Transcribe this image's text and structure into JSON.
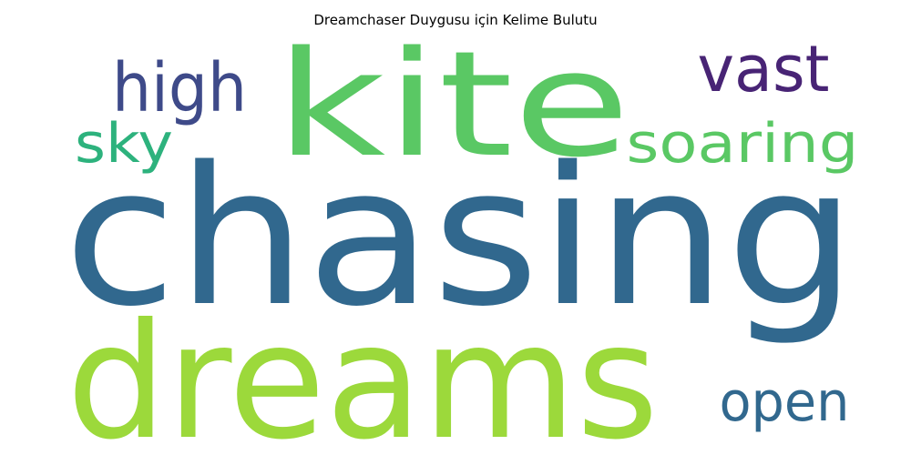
{
  "title": "Dreamchaser Duygusu için Kelime Bulutu",
  "words": [
    {
      "text": "chasing",
      "color": "#31688e"
    },
    {
      "text": "dreams",
      "color": "#9cd93b"
    },
    {
      "text": "kite",
      "color": "#5ac864"
    },
    {
      "text": "high",
      "color": "#3e4a89"
    },
    {
      "text": "vast",
      "color": "#482475"
    },
    {
      "text": "sky",
      "color": "#2db27d"
    },
    {
      "text": "soaring",
      "color": "#5ac864"
    },
    {
      "text": "open",
      "color": "#31688e"
    }
  ]
}
